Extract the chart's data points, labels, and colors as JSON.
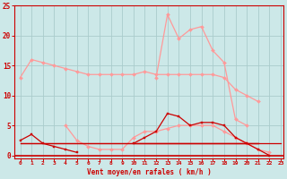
{
  "x": [
    0,
    1,
    2,
    3,
    4,
    5,
    6,
    7,
    8,
    9,
    10,
    11,
    12,
    13,
    14,
    15,
    16,
    17,
    18,
    19,
    20,
    21,
    22,
    23
  ],
  "line_avg": [
    13,
    16,
    15.5,
    15,
    14.5,
    14,
    13.5,
    13.5,
    13.5,
    13.5,
    13.5,
    14,
    13.5,
    13.5,
    13.5,
    13.5,
    13.5,
    13.5,
    13,
    11,
    10,
    9,
    null,
    null
  ],
  "line_gust": [
    null,
    null,
    null,
    null,
    null,
    null,
    null,
    null,
    null,
    null,
    null,
    null,
    13,
    23.5,
    19.5,
    21,
    21.5,
    17.5,
    15.5,
    6,
    5,
    null,
    null,
    null
  ],
  "line_mid1": [
    null,
    null,
    null,
    null,
    5,
    2.5,
    1.5,
    1,
    1,
    1,
    3,
    4,
    4,
    4.5,
    5,
    5,
    5,
    5,
    4,
    3,
    2,
    1,
    0.5,
    null
  ],
  "line_low1": [
    2.5,
    3.5,
    2,
    1.5,
    1,
    0.5,
    null,
    null,
    null,
    null,
    2,
    3,
    4,
    7,
    6.5,
    5,
    5.5,
    5.5,
    5,
    3,
    2,
    1,
    0,
    null
  ],
  "line_flat1": [
    2,
    2,
    2,
    2,
    2,
    2,
    2,
    2,
    2,
    2,
    2,
    2,
    2,
    2,
    2,
    2,
    2,
    2,
    2,
    2,
    2,
    2,
    2,
    2
  ],
  "line_flat2": [
    2,
    2,
    2,
    2,
    2,
    2,
    2,
    2,
    2,
    2,
    2,
    2,
    2,
    2,
    2,
    2,
    2,
    2,
    2,
    2,
    2,
    2,
    null,
    null
  ],
  "line_flat3": [
    null,
    null,
    null,
    null,
    null,
    null,
    null,
    null,
    null,
    null,
    2,
    2,
    2,
    2,
    2,
    2,
    2,
    2,
    2,
    2,
    2,
    2,
    null,
    null
  ],
  "line_low2": [
    null,
    null,
    null,
    null,
    null,
    null,
    null,
    null,
    null,
    null,
    null,
    null,
    null,
    null,
    null,
    null,
    null,
    null,
    null,
    null,
    2,
    1,
    0,
    null
  ],
  "xlim": [
    0,
    23
  ],
  "ylim": [
    -0.5,
    25
  ],
  "yticks": [
    0,
    5,
    10,
    15,
    20,
    25
  ],
  "xticks": [
    0,
    1,
    2,
    3,
    4,
    5,
    6,
    7,
    8,
    9,
    10,
    11,
    12,
    13,
    14,
    15,
    16,
    17,
    18,
    19,
    20,
    21,
    22,
    23
  ],
  "xlabel": "Vent moyen/en rafales ( km/h )",
  "bg_color": "#cce8e8",
  "grid_color": "#aacccc",
  "color_light": "#ff9999",
  "color_dark": "#cc0000",
  "axis_color": "#cc0000"
}
